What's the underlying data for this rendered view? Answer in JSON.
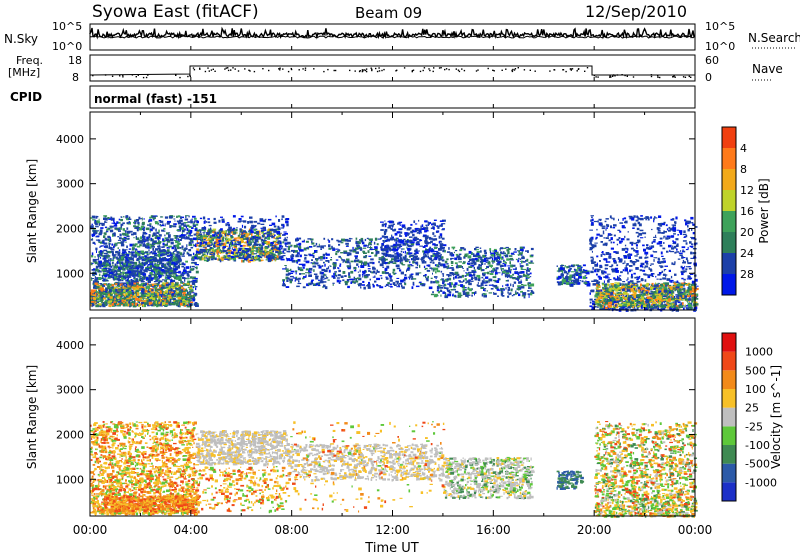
{
  "header": {
    "title_left": "Syowa East (fitACF)",
    "title_center": "Beam 09",
    "title_right": "12/Sep/2010"
  },
  "panels": {
    "nsky": {
      "label": "N.Sky",
      "ytick_top": "10^5",
      "ytick_bottom": "10^0",
      "right_label": "N.Search",
      "right_tick_top": "10^5",
      "right_tick_bottom": "10^0"
    },
    "freq": {
      "label_line1": "Freq.",
      "label_line2": "[MHz]",
      "ytick_top": "18",
      "ytick_bottom": "8",
      "right_label": "Nave",
      "right_tick_top": "60",
      "right_tick_bottom": "0"
    },
    "cpid": {
      "label": "CPID",
      "text": "normal (fast) -151"
    }
  },
  "chart_data": [
    {
      "type": "heatmap",
      "name": "power",
      "ylabel": "Slant Range [km]",
      "yticks": [
        1000,
        2000,
        3000,
        4000
      ],
      "ylim": [
        180,
        4600
      ],
      "xlim": [
        0,
        24
      ],
      "colorbar": {
        "label": "Power [dB]",
        "ticks": [
          "4",
          "8",
          "12",
          "16",
          "20",
          "24",
          "28"
        ],
        "colors": [
          "#0018e8",
          "#1c40a8",
          "#2e7f5a",
          "#3ea25a",
          "#bfd32a",
          "#f2a91a",
          "#ff7a1a",
          "#f14010"
        ]
      },
      "features": [
        {
          "t0": 0.0,
          "t1": 4.2,
          "r0": 250,
          "r1": 2300,
          "dominant": "mixed green/blue with orange at low range"
        },
        {
          "t0": 4.2,
          "t1": 7.5,
          "r0": 1200,
          "r1": 2000,
          "dominant": "orange/green band"
        },
        {
          "t0": 7.5,
          "t1": 13.5,
          "r0": 700,
          "r1": 1800,
          "dominant": "blue scattered"
        },
        {
          "t0": 13.5,
          "t1": 17.5,
          "r0": 500,
          "r1": 1700,
          "dominant": "green/blue descending"
        },
        {
          "t0": 20.0,
          "t1": 24.0,
          "r0": 200,
          "r1": 2300,
          "dominant": "orange/green at low range"
        }
      ]
    },
    {
      "type": "heatmap",
      "name": "velocity",
      "ylabel": "Slant Range [km]",
      "yticks": [
        1000,
        2000,
        3000,
        4000
      ],
      "ylim": [
        180,
        4600
      ],
      "xlim": [
        0,
        24
      ],
      "xlabel": "Time UT",
      "xticks": [
        "00:00",
        "04:00",
        "08:00",
        "12:00",
        "16:00",
        "20:00",
        "00:00"
      ],
      "colorbar": {
        "label": "Velocity [m s^-1]",
        "ticks": [
          "1000",
          "500",
          "100",
          "25",
          "-25",
          "-100",
          "-500",
          "-1000"
        ],
        "colors": [
          "#1c30c8",
          "#2c5aa8",
          "#3f8a52",
          "#5ec83a",
          "#bfbfbf",
          "#f7c028",
          "#f28a1a",
          "#f04818",
          "#e01010"
        ]
      },
      "features": [
        {
          "t0": 0.0,
          "t1": 4.2,
          "r0": 250,
          "r1": 2300,
          "dominant": "yellow/orange"
        },
        {
          "t0": 4.2,
          "t1": 7.8,
          "r0": 1300,
          "r1": 2100,
          "dominant": "grey"
        },
        {
          "t0": 7.8,
          "t1": 14.0,
          "r0": 1000,
          "r1": 1800,
          "dominant": "grey"
        },
        {
          "t0": 14.0,
          "t1": 17.5,
          "r0": 600,
          "r1": 1500,
          "dominant": "green/grey"
        },
        {
          "t0": 18.5,
          "t1": 19.5,
          "r0": 800,
          "r1": 1200,
          "dominant": "teal"
        },
        {
          "t0": 20.0,
          "t1": 24.0,
          "r0": 200,
          "r1": 2300,
          "dominant": "yellow/green/orange"
        }
      ]
    }
  ]
}
